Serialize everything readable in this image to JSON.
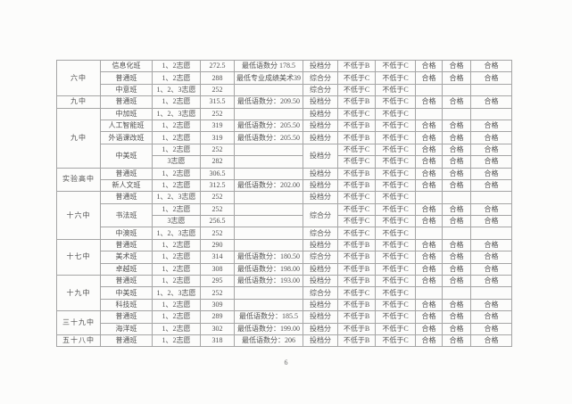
{
  "page": {
    "page_number": "6"
  },
  "table": {
    "column_names": [
      "school",
      "class",
      "volunteer",
      "score",
      "remark",
      "score_type",
      "grade_b",
      "grade_c",
      "pass1",
      "pass2",
      "pass3"
    ],
    "rows": [
      {
        "school": "六中",
        "school_span": 3,
        "class": "信息化班",
        "class_span": 1,
        "volunteer": "1、2志愿",
        "score": "272.5",
        "remark": "最低语数分 178.5",
        "score_type": "投档分",
        "type_span": 1,
        "grade_b": "不低于B",
        "grade_c": "不低于C",
        "pass1": "合格",
        "pass2": "合格",
        "pass3": "合格"
      },
      {
        "class": "普通班",
        "class_span": 1,
        "volunteer": "1、2志愿",
        "score": "288",
        "remark": "最低专业成绩美术39",
        "score_type": "综合分",
        "type_span": 1,
        "grade_b": "不低于C",
        "grade_c": "不低于C",
        "pass1": "合格",
        "pass2": "合格",
        "pass3": "合格"
      },
      {
        "class": "中意班",
        "class_span": 1,
        "volunteer": "1、2、3志愿",
        "score": "252",
        "remark": "",
        "score_type": "综合分",
        "type_span": 1,
        "grade_b": "不低于C",
        "grade_c": "不低于C",
        "pass1": "",
        "pass2": "",
        "pass3": ""
      },
      {
        "school": "九中",
        "school_span": 1,
        "class": "普通班",
        "class_span": 1,
        "volunteer": "1、2志愿",
        "score": "315.5",
        "remark": "最低语数分：209.50",
        "score_type": "投档分",
        "type_span": 1,
        "grade_b": "不低于B",
        "grade_c": "不低于C",
        "pass1": "合格",
        "pass2": "合格",
        "pass3": "合格"
      },
      {
        "school": "九中",
        "school_span": 5,
        "class": "中加班",
        "class_span": 1,
        "volunteer": "1、2、3志愿",
        "score": "252",
        "remark": "",
        "score_type": "投档分",
        "type_span": 1,
        "grade_b": "不低于C",
        "grade_c": "不低于C",
        "pass1": "",
        "pass2": "",
        "pass3": ""
      },
      {
        "class": "人工智能班",
        "class_span": 1,
        "volunteer": "1、2志愿",
        "score": "319",
        "remark": "最低语数分：205.50",
        "score_type": "投档分",
        "type_span": 1,
        "grade_b": "不低于B",
        "grade_c": "不低于C",
        "pass1": "合格",
        "pass2": "合格",
        "pass3": "合格"
      },
      {
        "class": "外语课改班",
        "class_span": 1,
        "volunteer": "1、2志愿",
        "score": "319",
        "remark": "最低语数分：205.50",
        "score_type": "投档分",
        "type_span": 1,
        "grade_b": "不低于B",
        "grade_c": "不低于C",
        "pass1": "合格",
        "pass2": "合格",
        "pass3": "合格"
      },
      {
        "class": "中美班",
        "class_span": 2,
        "volunteer": "1、2志愿",
        "score": "252",
        "remark": "",
        "score_type": "投档分",
        "type_span": 2,
        "grade_b": "不低于C",
        "grade_c": "不低于C",
        "pass1": "合格",
        "pass2": "合格",
        "pass3": "合格"
      },
      {
        "class_span": 0,
        "volunteer": "3志愿",
        "score": "282",
        "remark": "",
        "type_span": 0,
        "grade_b": "不低于C",
        "grade_c": "不低于C",
        "pass1": "合格",
        "pass2": "合格",
        "pass3": "合格"
      },
      {
        "school": "实验高中",
        "school_span": 2,
        "class": "普通班",
        "class_span": 1,
        "volunteer": "1、2志愿",
        "score": "306.5",
        "remark": "",
        "score_type": "投档分",
        "type_span": 1,
        "grade_b": "不低于B",
        "grade_c": "不低于C",
        "pass1": "合格",
        "pass2": "合格",
        "pass3": "合格"
      },
      {
        "class": "新人文班",
        "class_span": 1,
        "volunteer": "1、2志愿",
        "score": "312.5",
        "remark": "最低语数分：202.00",
        "score_type": "投档分",
        "type_span": 1,
        "grade_b": "不低于B",
        "grade_c": "不低于C",
        "pass1": "合格",
        "pass2": "合格",
        "pass3": "合格"
      },
      {
        "school": "十六中",
        "school_span": 4,
        "class": "普通班",
        "class_span": 1,
        "volunteer": "1、2、3志愿",
        "score": "252",
        "remark": "",
        "score_type": "投档分",
        "type_span": 1,
        "grade_b": "不低于C",
        "grade_c": "不低于C",
        "pass1": "",
        "pass2": "",
        "pass3": ""
      },
      {
        "class": "书法班",
        "class_span": 2,
        "volunteer": "1、2志愿",
        "score": "252",
        "remark": "",
        "score_type": "综合分",
        "type_span": 2,
        "grade_b": "不低于C",
        "grade_c": "不低于C",
        "pass1": "合格",
        "pass2": "合格",
        "pass3": "合格"
      },
      {
        "class_span": 0,
        "volunteer": "3志愿",
        "score": "256.5",
        "remark": "",
        "type_span": 0,
        "grade_b": "不低于C",
        "grade_c": "不低于C",
        "pass1": "合格",
        "pass2": "合格",
        "pass3": "合格"
      },
      {
        "class": "中澳班",
        "class_span": 1,
        "volunteer": "1、2、3志愿",
        "score": "252",
        "remark": "",
        "score_type": "综合分",
        "type_span": 1,
        "grade_b": "不低于C",
        "grade_c": "不低于C",
        "pass1": "",
        "pass2": "",
        "pass3": ""
      },
      {
        "school": "十七中",
        "school_span": 3,
        "class": "普通班",
        "class_span": 1,
        "volunteer": "1、2志愿",
        "score": "290",
        "remark": "",
        "score_type": "投档分",
        "type_span": 1,
        "grade_b": "不低于B",
        "grade_c": "不低于C",
        "pass1": "合格",
        "pass2": "合格",
        "pass3": "合格"
      },
      {
        "class": "美术班",
        "class_span": 1,
        "volunteer": "1、2志愿",
        "score": "314",
        "remark": "最低语数分：180.50",
        "score_type": "综合分",
        "type_span": 1,
        "grade_b": "不低于B",
        "grade_c": "不低于C",
        "pass1": "合格",
        "pass2": "合格",
        "pass3": "合格"
      },
      {
        "class": "卓越班",
        "class_span": 1,
        "volunteer": "1、2志愿",
        "score": "308",
        "remark": "最低语数分：198.00",
        "score_type": "投档分",
        "type_span": 1,
        "grade_b": "不低于B",
        "grade_c": "不低于C",
        "pass1": "合格",
        "pass2": "合格",
        "pass3": "合格"
      },
      {
        "school": "十九中",
        "school_span": 3,
        "class": "普通班",
        "class_span": 1,
        "volunteer": "1、2志愿",
        "score": "295",
        "remark": "最低语数分：193.00",
        "score_type": "投档分",
        "type_span": 1,
        "grade_b": "不低于B",
        "grade_c": "不低于C",
        "pass1": "合格",
        "pass2": "合格",
        "pass3": "合格"
      },
      {
        "class": "中美班",
        "class_span": 1,
        "volunteer": "1、2、3志愿",
        "score": "252",
        "remark": "",
        "score_type": "综合分",
        "type_span": 1,
        "grade_b": "不低于C",
        "grade_c": "不低于C",
        "pass1": "",
        "pass2": "",
        "pass3": ""
      },
      {
        "class": "科技班",
        "class_span": 1,
        "volunteer": "1、2志愿",
        "score": "309",
        "remark": "",
        "score_type": "投档分",
        "type_span": 1,
        "grade_b": "不低于B",
        "grade_c": "不低于C",
        "pass1": "合格",
        "pass2": "合格",
        "pass3": "合格"
      },
      {
        "school": "三十九中",
        "school_span": 2,
        "class": "普通班",
        "class_span": 1,
        "volunteer": "1、2志愿",
        "score": "289",
        "remark": "最低语数分：185.5",
        "score_type": "投档分",
        "type_span": 1,
        "grade_b": "不低于B",
        "grade_c": "不低于C",
        "pass1": "合格",
        "pass2": "合格",
        "pass3": "合格"
      },
      {
        "class": "海洋班",
        "class_span": 1,
        "volunteer": "1、2志愿",
        "score": "302",
        "remark": "最低语数分：199.00",
        "score_type": "投档分",
        "type_span": 1,
        "grade_b": "不低于B",
        "grade_c": "不低于C",
        "pass1": "合格",
        "pass2": "合格",
        "pass3": "合格"
      },
      {
        "school": "五十八中",
        "school_span": 1,
        "class": "普通班",
        "class_span": 1,
        "volunteer": "1、2志愿",
        "score": "318",
        "remark": "最低语数分：206",
        "score_type": "投档分",
        "type_span": 1,
        "grade_b": "不低于B",
        "grade_c": "不低于C",
        "pass1": "合格",
        "pass2": "合格",
        "pass3": "合格"
      }
    ]
  }
}
